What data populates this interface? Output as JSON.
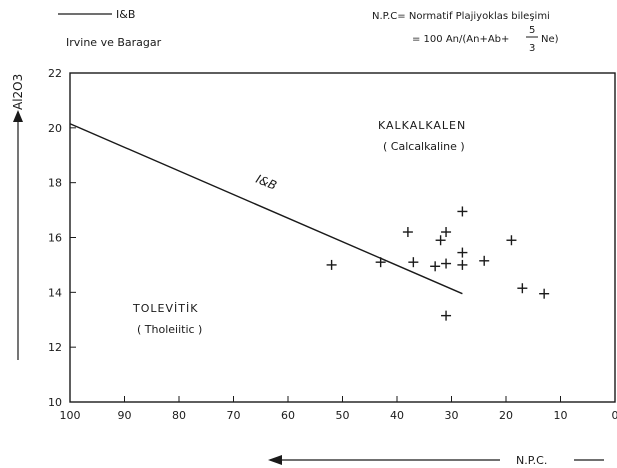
{
  "chart_data": {
    "type": "scatter",
    "title": "",
    "xlabel": "N.P.C.",
    "ylabel": "Al2O3",
    "xlim": [
      100,
      0
    ],
    "ylim": [
      10,
      22
    ],
    "x_reversed": true,
    "grid": false,
    "x_ticks": [
      "100",
      "90",
      "80",
      "70",
      "60",
      "50",
      "40",
      "30",
      "20",
      "10",
      "0"
    ],
    "y_ticks": [
      "10",
      "12",
      "14",
      "16",
      "18",
      "20",
      "22"
    ],
    "points": [
      {
        "x": 52,
        "y": 15.0
      },
      {
        "x": 43,
        "y": 15.1
      },
      {
        "x": 38,
        "y": 16.2
      },
      {
        "x": 37,
        "y": 15.1
      },
      {
        "x": 33,
        "y": 14.95
      },
      {
        "x": 32,
        "y": 15.9
      },
      {
        "x": 31,
        "y": 16.2
      },
      {
        "x": 31,
        "y": 15.05
      },
      {
        "x": 31,
        "y": 13.15
      },
      {
        "x": 28,
        "y": 16.95
      },
      {
        "x": 28,
        "y": 15.45
      },
      {
        "x": 28,
        "y": 15.0
      },
      {
        "x": 24,
        "y": 15.15
      },
      {
        "x": 19,
        "y": 15.9
      },
      {
        "x": 17,
        "y": 14.15
      },
      {
        "x": 13,
        "y": 13.95
      }
    ],
    "boundary_line": {
      "label": "I&B",
      "from": {
        "x": 100,
        "y": 20.15
      },
      "to": {
        "x": 28,
        "y": 13.95
      }
    },
    "fields": [
      {
        "name": "KALKALKALEN",
        "subname": "( Calcalkaline )"
      },
      {
        "name": "TOLEVİTİK",
        "subname": "( Tholeiitic )"
      }
    ],
    "legend": {
      "line_label": "I&B",
      "source": "Irvine ve Baragar"
    },
    "npc_note": {
      "line1": "N.P.C= Normatif  Plajiyoklas bileşimi",
      "prefix": "= 100  An/(An+Ab+",
      "frac_num": "5",
      "frac_den": "3",
      "suffix": "Ne)"
    }
  }
}
